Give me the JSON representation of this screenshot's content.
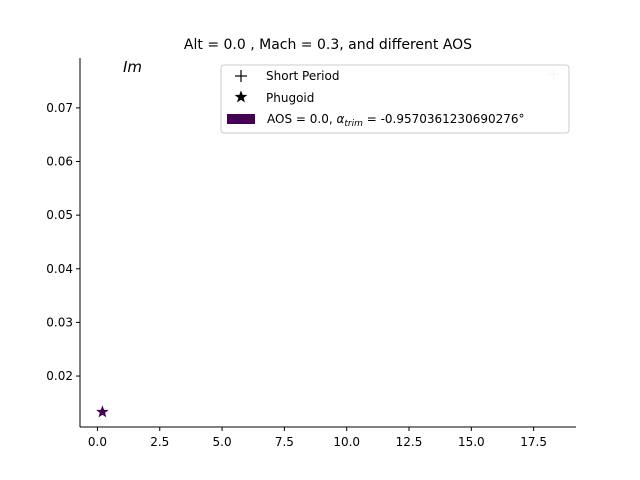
{
  "chart_data": {
    "type": "scatter",
    "title": "Alt = 0.0 , Mach = 0.3, and different AOS",
    "xlabel": "",
    "ylabel": "",
    "annotation": "Im",
    "xlim": [
      -0.7,
      19.2
    ],
    "ylim": [
      0.0105,
      0.0793
    ],
    "x_ticks": [
      0.0,
      2.5,
      5.0,
      7.5,
      10.0,
      12.5,
      15.0,
      17.5
    ],
    "x_tick_labels": [
      "0.0",
      "2.5",
      "5.0",
      "7.5",
      "10.0",
      "12.5",
      "15.0",
      "17.5"
    ],
    "y_ticks": [
      0.02,
      0.03,
      0.04,
      0.05,
      0.06,
      0.07
    ],
    "y_tick_labels": [
      "0.02",
      "0.03",
      "0.04",
      "0.05",
      "0.06",
      "0.07"
    ],
    "grid": false,
    "legend": {
      "placement": "top-right",
      "entries": [
        {
          "label": "Short Period",
          "marker": "plus"
        },
        {
          "label": "Phugoid",
          "marker": "star"
        },
        {
          "label_prefix": "AOS = 0.0, ",
          "label_symbol": "α",
          "label_sub": "trim",
          "label_suffix": " = -0.9570361230690276°",
          "marker": "patch"
        }
      ]
    },
    "series": [
      {
        "mode": "Short Period",
        "marker": "plus",
        "points": [
          {
            "x": 18.3,
            "y": 0.0763
          }
        ]
      },
      {
        "mode": "Phugoid",
        "marker": "star",
        "points": [
          {
            "x": 0.2,
            "y": 0.0133
          }
        ]
      }
    ],
    "colors": {
      "series": "#440154",
      "short_period_marker": "#d8d0dc",
      "axis": "#000000",
      "legend_border": "#cccccc"
    }
  }
}
